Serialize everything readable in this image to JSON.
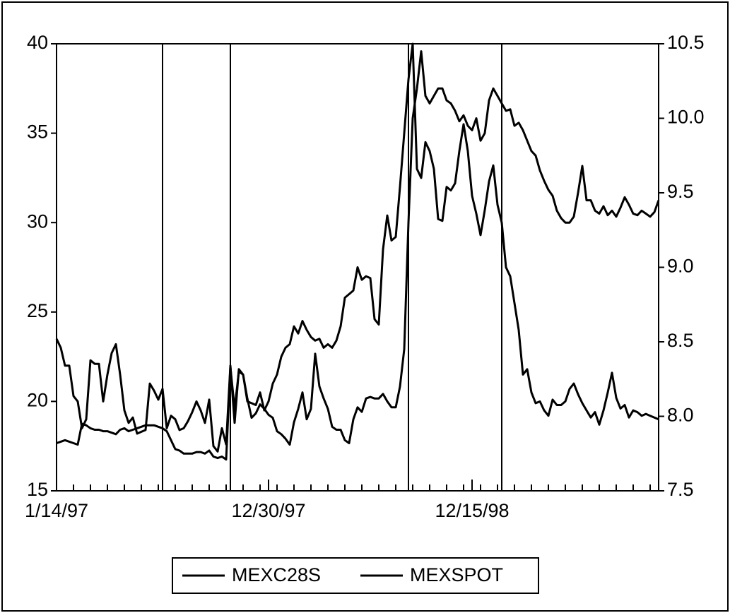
{
  "chart_data": {
    "type": "line",
    "categories": [
      "1/14/97",
      null,
      null,
      null,
      null,
      null,
      null,
      null,
      null,
      null,
      null,
      null,
      null,
      null,
      null,
      null,
      null,
      null,
      null,
      null,
      null,
      null,
      null,
      null,
      null,
      null,
      null,
      null,
      null,
      null,
      null,
      null,
      null,
      null,
      null,
      null,
      null,
      null,
      null,
      null,
      null,
      null,
      null,
      null,
      null,
      null,
      null,
      null,
      null,
      null,
      "12/30/97",
      null,
      null,
      null,
      null,
      null,
      null,
      null,
      null,
      null,
      null,
      null,
      null,
      null,
      null,
      null,
      null,
      null,
      null,
      null,
      null,
      null,
      null,
      null,
      null,
      null,
      null,
      null,
      null,
      null,
      null,
      null,
      null,
      null,
      null,
      null,
      null,
      null,
      null,
      null,
      null,
      null,
      null,
      null,
      null,
      null,
      null,
      null,
      "12/15/98",
      null,
      null,
      null,
      null,
      null,
      null,
      null,
      null,
      null,
      null,
      null,
      null,
      null,
      null,
      null,
      null,
      null,
      null,
      null,
      null,
      null,
      null,
      null,
      null,
      null,
      null,
      null,
      null,
      null,
      null,
      null,
      null,
      null,
      null,
      null,
      null,
      null,
      null,
      null,
      null,
      null,
      null,
      null,
      null
    ],
    "series": [
      {
        "name": "MEXC28S",
        "color": "#000000",
        "axis": "y",
        "values": [
          23.5,
          23,
          22,
          22,
          20.3,
          20,
          18.5,
          19,
          22.3,
          22.1,
          22.1,
          20,
          21.5,
          22.7,
          23.2,
          21.5,
          19.5,
          18.8,
          19.1,
          18.2,
          18.3,
          18.4,
          21,
          20.6,
          20.1,
          20.7,
          18.5,
          19.2,
          19,
          18.4,
          18.5,
          18.9,
          19.4,
          20,
          19.5,
          18.8,
          20.1,
          17.5,
          17.2,
          18.5,
          17.6,
          22,
          18.8,
          21.8,
          21.5,
          20,
          19.9,
          19.8,
          20.5,
          19.5,
          20,
          21,
          21.5,
          22.5,
          23,
          23.2,
          24.2,
          23.8,
          24.5,
          24,
          23.6,
          23.4,
          23.5,
          23,
          23.2,
          23,
          23.4,
          24.2,
          25.8,
          26,
          26.2,
          27.5,
          26.8,
          27,
          26.9,
          24.6,
          24.3,
          28.5,
          30.4,
          29,
          29.2,
          32,
          35,
          38,
          40,
          33,
          32.5,
          34.5,
          34,
          33,
          30.2,
          30.1,
          32,
          31.8,
          32.2,
          34,
          35.5,
          34,
          31.5,
          30.5,
          29.3,
          30.7,
          32.3,
          33.2,
          31,
          30,
          27.5,
          27,
          25.5,
          24,
          21.5,
          21.8,
          20.5,
          19.9,
          20,
          19.5,
          19.2,
          20.1,
          19.8,
          19.8,
          20,
          20.7,
          21,
          20.4,
          19.9,
          19.5,
          19.1,
          19.4,
          18.7,
          19.5,
          20.5,
          21.6,
          20.2,
          19.6,
          19.8,
          19.1,
          19.5,
          19.4,
          19.2,
          19.3,
          19.2,
          19.1,
          19
        ]
      },
      {
        "name": "MEXSPOT",
        "color": "#000000",
        "axis": "y2",
        "values": [
          7.82,
          7.83,
          7.84,
          7.83,
          7.82,
          7.81,
          7.95,
          7.94,
          7.92,
          7.91,
          7.91,
          7.9,
          7.9,
          7.89,
          7.88,
          7.91,
          7.92,
          7.9,
          7.91,
          7.92,
          7.93,
          7.94,
          7.94,
          7.94,
          7.93,
          7.92,
          7.9,
          7.84,
          7.78,
          7.77,
          7.75,
          7.75,
          7.75,
          7.76,
          7.76,
          7.75,
          7.77,
          7.73,
          7.72,
          7.73,
          7.71,
          8.33,
          8.05,
          8.3,
          8.28,
          8.12,
          7.99,
          8.02,
          8.08,
          8.05,
          8.01,
          7.99,
          7.9,
          7.88,
          7.85,
          7.81,
          7.96,
          8.05,
          8.16,
          7.98,
          8.05,
          8.42,
          8.2,
          8.12,
          8.05,
          7.93,
          7.91,
          7.91,
          7.84,
          7.82,
          7.98,
          8.06,
          8.03,
          8.12,
          8.13,
          8.12,
          8.12,
          8.15,
          8.1,
          8.06,
          8.06,
          8.2,
          8.45,
          9.3,
          10.0,
          10.2,
          10.45,
          10.15,
          10.1,
          10.15,
          10.2,
          10.2,
          10.12,
          10.1,
          10.05,
          9.98,
          10.02,
          9.95,
          9.92,
          10.0,
          9.85,
          9.9,
          10.12,
          10.2,
          10.15,
          10.1,
          10.05,
          10.06,
          9.95,
          9.97,
          9.92,
          9.85,
          9.78,
          9.75,
          9.65,
          9.58,
          9.52,
          9.48,
          9.38,
          9.33,
          9.3,
          9.3,
          9.34,
          9.5,
          9.68,
          9.45,
          9.45,
          9.38,
          9.36,
          9.41,
          9.35,
          9.38,
          9.34,
          9.4,
          9.47,
          9.42,
          9.36,
          9.35,
          9.38,
          9.36,
          9.34,
          9.37,
          9.45
        ]
      }
    ],
    "ylim": [
      15,
      40
    ],
    "yticks": [
      15,
      20,
      25,
      30,
      35,
      40
    ],
    "y2lim": [
      7.5,
      10.5
    ],
    "y2ticks": [
      7.5,
      {
        "value": 8,
        "label": "8.0"
      },
      8.5,
      {
        "value": 9,
        "label": "9.0"
      },
      9.5,
      {
        "value": 10,
        "label": "10.0"
      },
      10.5
    ],
    "vlines": [
      25,
      41,
      83,
      105
    ],
    "legend": "bottom"
  }
}
